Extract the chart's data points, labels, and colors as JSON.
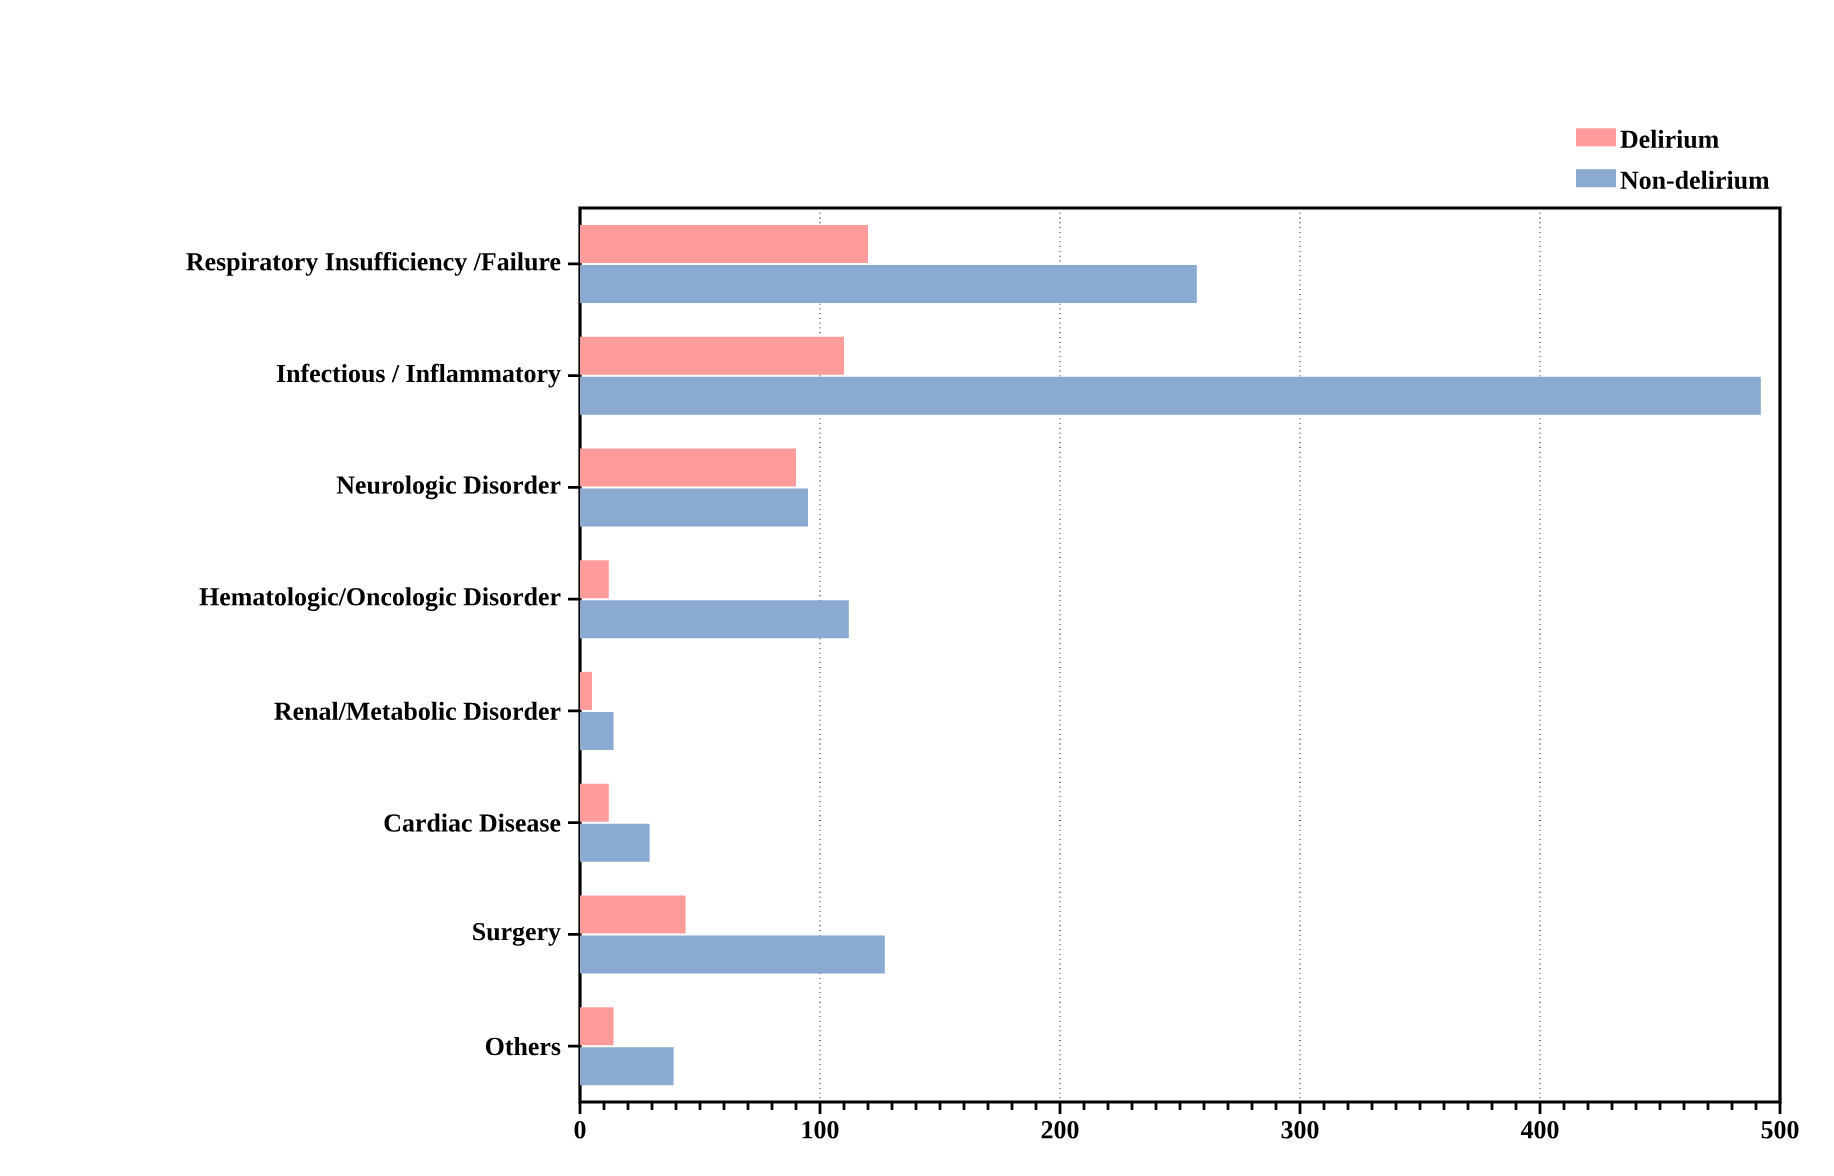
{
  "chart_data": {
    "type": "bar",
    "orientation": "horizontal",
    "categories": [
      "Respiratory Insufficiency  /Failure",
      "Infectious / Inflammatory",
      "Neurologic Disorder",
      "Hematologic/Oncologic Disorder",
      "Renal/Metabolic Disorder",
      "Cardiac Disease",
      "Surgery",
      "Others"
    ],
    "series": [
      {
        "name": "Delirium",
        "color": "#fe9c9c",
        "values": [
          120,
          110,
          90,
          12,
          5,
          12,
          44,
          14
        ]
      },
      {
        "name": "Non-delirium",
        "color": "#8aaad2",
        "values": [
          257,
          492,
          95,
          112,
          14,
          29,
          127,
          39
        ]
      }
    ],
    "xlim": [
      0,
      500
    ],
    "xticks": [
      0,
      100,
      200,
      300,
      400,
      500
    ],
    "grid": "x",
    "legend": "top right"
  }
}
